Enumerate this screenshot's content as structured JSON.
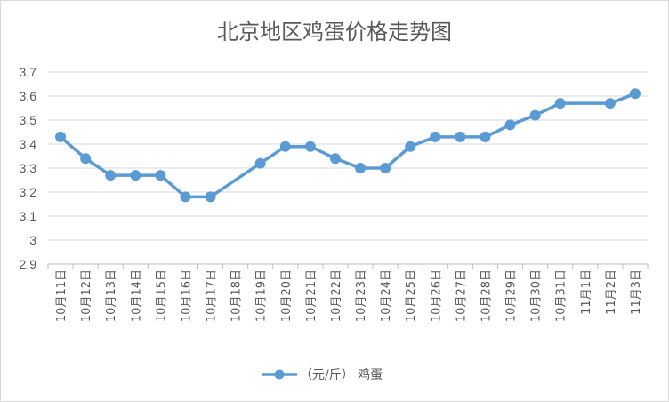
{
  "chart_data": {
    "type": "line",
    "title": "北京地区鸡蛋价格走势图",
    "xlabel": "",
    "ylabel": "",
    "ylim": [
      2.9,
      3.7
    ],
    "yticks": [
      "2.9",
      "3",
      "3.1",
      "3.2",
      "3.3",
      "3.4",
      "3.5",
      "3.6",
      "3.7"
    ],
    "grid": true,
    "legend_position": "bottom",
    "categories": [
      "10月11日",
      "10月12日",
      "10月13日",
      "10月14日",
      "10月15日",
      "10月16日",
      "10月17日",
      "10月18日",
      "10月19日",
      "10月20日",
      "10月21日",
      "10月22日",
      "10月23日",
      "10月24日",
      "10月25日",
      "10月26日",
      "10月27日",
      "10月28日",
      "10月29日",
      "10月30日",
      "10月31日",
      "11月1日",
      "11月2日",
      "11月3日"
    ],
    "series": [
      {
        "name": "（元/斤） 鸡蛋",
        "color": "#5b9bd5",
        "values": [
          3.43,
          3.34,
          3.27,
          3.27,
          3.27,
          3.18,
          3.18,
          null,
          3.32,
          3.39,
          3.39,
          3.34,
          3.3,
          3.3,
          3.39,
          3.43,
          3.43,
          3.43,
          3.48,
          3.52,
          3.57,
          null,
          3.57,
          3.61
        ]
      }
    ]
  }
}
